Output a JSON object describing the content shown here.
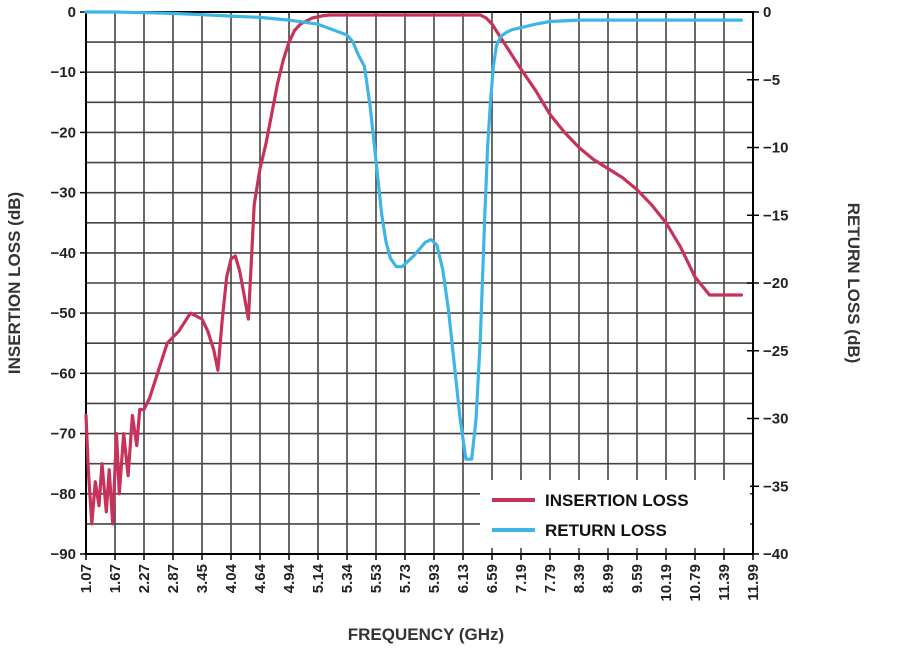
{
  "chart_data": {
    "type": "line",
    "xlabel": "FREQUENCY (GHz)",
    "ylabel_left": "INSERTION LOSS (dB)",
    "ylabel_right": "RETURN LOSS (dB)",
    "x_tick_labels": [
      "1.07",
      "1.67",
      "2.27",
      "2.87",
      "3.45",
      "4.04",
      "4.64",
      "4.94",
      "5.14",
      "5.34",
      "5.53",
      "5.73",
      "5.93",
      "6.13",
      "6.59",
      "7.19",
      "7.79",
      "8.39",
      "8.99",
      "9.59",
      "10.19",
      "10.79",
      "11.39",
      "11.99"
    ],
    "y_left_ticks": [
      0,
      -10,
      -20,
      -30,
      -40,
      -50,
      -60,
      -70,
      -80,
      -90
    ],
    "y_right_ticks": [
      0,
      -5,
      -10,
      -15,
      -20,
      -25,
      -30,
      -35,
      -40
    ],
    "y_left_range": [
      -90,
      0
    ],
    "y_right_range": [
      -40,
      0
    ],
    "grid": true,
    "legend_position": "bottom-right",
    "series": [
      {
        "name": "INSERTION LOSS",
        "axis": "left",
        "color": "#c7325a",
        "x_index": [
          0,
          0.08,
          0.2,
          0.32,
          0.45,
          0.55,
          0.7,
          0.8,
          0.92,
          1.05,
          1.15,
          1.3,
          1.45,
          1.6,
          1.75,
          1.85,
          2.0,
          2.2,
          2.4,
          2.6,
          2.8,
          3.0,
          3.2,
          3.4,
          3.6,
          3.8,
          4.0,
          4.2,
          4.4,
          4.55,
          4.7,
          4.85,
          5.0,
          5.15,
          5.3,
          5.45,
          5.6,
          5.8,
          6.0,
          6.2,
          6.4,
          6.6,
          6.8,
          7.0,
          7.2,
          7.4,
          7.6,
          7.8,
          8.0,
          8.2,
          8.4,
          8.6,
          8.8,
          9.0,
          9.2,
          9.4,
          9.6,
          9.8,
          10.0,
          10.2,
          10.4,
          10.6,
          10.8,
          11.0,
          11.2,
          11.4,
          11.6,
          11.8,
          12.0,
          12.2,
          12.4,
          12.6,
          12.8,
          13.0,
          13.2,
          13.4,
          13.6,
          13.8,
          14.0,
          14.2,
          14.4,
          14.6,
          14.8,
          15.0,
          15.5,
          16.0,
          16.5,
          17.0,
          17.5,
          18.0,
          18.5,
          19.0,
          19.5,
          20.0,
          20.5,
          21.0,
          21.5,
          22.0,
          22.3,
          22.6
        ],
        "y": [
          -67,
          -76,
          -85,
          -78,
          -82,
          -75,
          -83,
          -76,
          -85,
          -70,
          -80,
          -70,
          -77,
          -67,
          -72,
          -66,
          -66,
          -64,
          -61,
          -58,
          -55,
          -54,
          -53,
          -51.5,
          -50,
          -50.5,
          -51,
          -53,
          -56,
          -59.5,
          -51,
          -44,
          -41,
          -40.5,
          -43,
          -47,
          -51,
          -32,
          -26,
          -22,
          -17,
          -12,
          -8,
          -5,
          -3,
          -2,
          -1.5,
          -1,
          -0.8,
          -0.6,
          -0.5,
          -0.5,
          -0.5,
          -0.5,
          -0.5,
          -0.5,
          -0.5,
          -0.5,
          -0.5,
          -0.5,
          -0.5,
          -0.5,
          -0.5,
          -0.5,
          -0.5,
          -0.5,
          -0.5,
          -0.5,
          -0.5,
          -0.5,
          -0.5,
          -0.5,
          -0.5,
          -0.5,
          -0.5,
          -0.5,
          -0.5,
          -1,
          -2,
          -3.5,
          -5,
          -6.5,
          -8,
          -9.5,
          -13,
          -17,
          -20,
          -22.5,
          -24.5,
          -26,
          -27.5,
          -29.5,
          -32,
          -35,
          -39,
          -44,
          -47,
          -47,
          -47,
          -47
        ],
        "y_note": "values in dB read along the evenly spaced frequency tick positions"
      },
      {
        "name": "RETURN LOSS",
        "axis": "right",
        "color": "#3fb5e5",
        "x_index": [
          0,
          1,
          2,
          3,
          4,
          5,
          6,
          7,
          8,
          9,
          9.2,
          9.4,
          9.6,
          9.8,
          9.95,
          10.1,
          10.2,
          10.35,
          10.5,
          10.7,
          10.9,
          11.1,
          11.3,
          11.5,
          11.7,
          11.9,
          12.1,
          12.3,
          12.5,
          12.7,
          12.9,
          13.1,
          13.3,
          13.45,
          13.6,
          13.75,
          13.85,
          13.95,
          14.05,
          14.15,
          14.3,
          14.5,
          14.7,
          14.9,
          15.1,
          15.3,
          15.5,
          16,
          17,
          18,
          19,
          20,
          21,
          22,
          22.6
        ],
        "y": [
          0,
          0,
          -0.05,
          -0.1,
          -0.2,
          -0.3,
          -0.4,
          -0.6,
          -0.9,
          -1.7,
          -2.2,
          -3.2,
          -4,
          -7,
          -10,
          -13,
          -15,
          -17,
          -18.2,
          -18.8,
          -18.8,
          -18.4,
          -18,
          -17.5,
          -17,
          -16.8,
          -17.2,
          -19,
          -22,
          -26,
          -30,
          -33,
          -33,
          -30,
          -24,
          -15,
          -10,
          -6.5,
          -4,
          -2.5,
          -1.8,
          -1.5,
          -1.3,
          -1.2,
          -1.1,
          -1.0,
          -0.9,
          -0.7,
          -0.6,
          -0.6,
          -0.6,
          -0.6,
          -0.6,
          -0.6,
          -0.6
        ],
        "y_note": "values in dB read along the evenly spaced frequency tick positions"
      }
    ]
  }
}
